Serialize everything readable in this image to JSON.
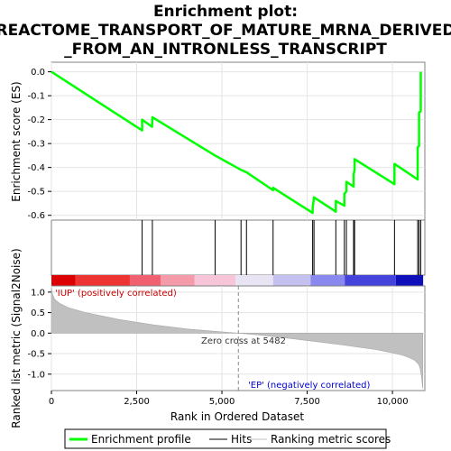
{
  "chart_data": {
    "type": "line",
    "title_lines": [
      "Enrichment plot:",
      "REACTOME_TRANSPORT_OF_MATURE_MRNA_DERIVED",
      "_FROM_AN_INTRONLESS_TRANSCRIPT"
    ],
    "top_panel": {
      "ylabel": "Enrichment score (ES)",
      "ylim": [
        -0.62,
        0.04
      ],
      "yticks": [
        0.0,
        -0.1,
        -0.2,
        -0.3,
        -0.4,
        -0.5,
        -0.6
      ],
      "ytick_labels": [
        "0.0",
        "-0.1",
        "-0.2",
        "-0.3",
        "-0.4",
        "-0.5",
        "-0.6"
      ],
      "series": [
        {
          "name": "Enrichment profile",
          "color": "#00ff00",
          "x": [
            0,
            2660,
            2660,
            2950,
            2960,
            4800,
            5560,
            5720,
            6500,
            6500,
            7660,
            7660,
            7700,
            8340,
            8340,
            8590,
            8590,
            8650,
            8650,
            8860,
            8860,
            8890,
            8890,
            10060,
            10060,
            10740,
            10740,
            10780,
            10780,
            10830,
            10830
          ],
          "y": [
            0.0,
            -0.245,
            -0.2,
            -0.23,
            -0.19,
            -0.35,
            -0.41,
            -0.42,
            -0.495,
            -0.485,
            -0.59,
            -0.57,
            -0.525,
            -0.585,
            -0.54,
            -0.56,
            -0.51,
            -0.5,
            -0.46,
            -0.48,
            -0.43,
            -0.41,
            -0.365,
            -0.47,
            -0.385,
            -0.45,
            -0.315,
            -0.31,
            -0.17,
            -0.165,
            0.0
          ]
        }
      ]
    },
    "hits": {
      "positions": [
        2660,
        2960,
        4800,
        5560,
        5720,
        6500,
        7660,
        7700,
        8340,
        8590,
        8650,
        8860,
        8890,
        10060,
        10740,
        10780,
        10830
      ]
    },
    "colorbar": {
      "segments": [
        {
          "from": 0,
          "to": 700,
          "color": "#dd0000"
        },
        {
          "from": 700,
          "to": 2300,
          "color": "#ee3333"
        },
        {
          "from": 2300,
          "to": 3200,
          "color": "#f06070"
        },
        {
          "from": 3200,
          "to": 4200,
          "color": "#f59aa8"
        },
        {
          "from": 4200,
          "to": 5400,
          "color": "#f8c4d8"
        },
        {
          "from": 5400,
          "to": 6500,
          "color": "#e8e4f4"
        },
        {
          "from": 6500,
          "to": 7600,
          "color": "#c4c0f0"
        },
        {
          "from": 7600,
          "to": 8600,
          "color": "#8888ee"
        },
        {
          "from": 8600,
          "to": 10100,
          "color": "#4444dd"
        },
        {
          "from": 10100,
          "to": 10900,
          "color": "#1010bb"
        }
      ]
    },
    "bottom_panel": {
      "ylabel": "Ranked list metric (Signal2Noise)",
      "xlabel": "Rank in Ordered Dataset",
      "ylim": [
        -1.4,
        1.15
      ],
      "yticks": [
        1.0,
        0.5,
        0.0,
        -0.5,
        -1.0
      ],
      "ytick_labels": [
        "1.0",
        "0.5",
        "0.0",
        "-0.5",
        "-1.0"
      ],
      "metric_curve": {
        "color": "#c0c0c0",
        "x": [
          0,
          30,
          100,
          250,
          500,
          1000,
          2000,
          3000,
          4000,
          5000,
          5482,
          6000,
          7000,
          8000,
          9000,
          9500,
          10000,
          10300,
          10500,
          10650,
          10750,
          10800,
          10830,
          10850,
          10870,
          10890
        ],
        "y": [
          1.12,
          0.95,
          0.82,
          0.72,
          0.62,
          0.5,
          0.33,
          0.2,
          0.1,
          0.03,
          0.0,
          -0.04,
          -0.13,
          -0.23,
          -0.34,
          -0.4,
          -0.48,
          -0.54,
          -0.6,
          -0.66,
          -0.74,
          -0.82,
          -0.95,
          -1.05,
          -1.2,
          -1.35
        ]
      },
      "zero_cross": 5482,
      "zero_cross_label": "Zero cross at 5482",
      "pos_label": "'IUP' (positively correlated)",
      "neg_label": "'EP' (negatively correlated)"
    },
    "xlim": [
      0,
      10950
    ],
    "xticks": [
      0,
      2500,
      5000,
      7500,
      10000
    ],
    "xtick_labels": [
      "0",
      "2,500",
      "5,000",
      "7,500",
      "10,000"
    ],
    "legend": {
      "placement": "bottom",
      "entries": [
        {
          "label": "Enrichment profile",
          "color": "#00ff00",
          "kind": "thick-line"
        },
        {
          "label": "Hits",
          "color": "#000000",
          "kind": "line"
        },
        {
          "label": "Ranking metric scores",
          "color": "#c0c0c0",
          "kind": "line"
        }
      ]
    }
  }
}
